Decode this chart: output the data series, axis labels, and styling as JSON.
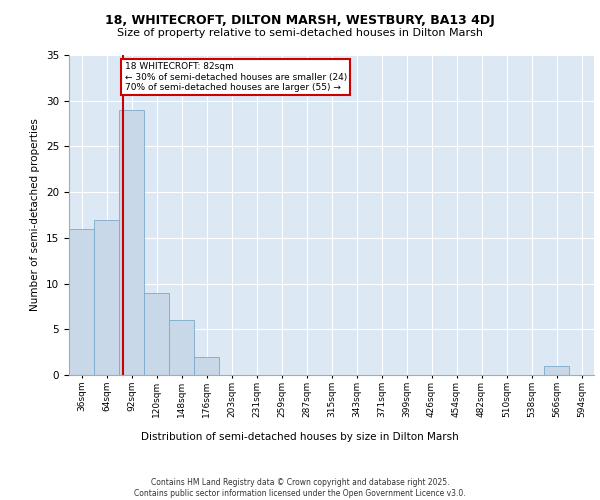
{
  "title_line1": "18, WHITECROFT, DILTON MARSH, WESTBURY, BA13 4DJ",
  "title_line2": "Size of property relative to semi-detached houses in Dilton Marsh",
  "xlabel": "Distribution of semi-detached houses by size in Dilton Marsh",
  "ylabel": "Number of semi-detached properties",
  "annotation_title": "18 WHITECROFT: 82sqm",
  "annotation_line2": "← 30% of semi-detached houses are smaller (24)",
  "annotation_line3": "70% of semi-detached houses are larger (55) →",
  "footer_line1": "Contains HM Land Registry data © Crown copyright and database right 2025.",
  "footer_line2": "Contains public sector information licensed under the Open Government Licence v3.0.",
  "bin_labels": [
    "36sqm",
    "64sqm",
    "92sqm",
    "120sqm",
    "148sqm",
    "176sqm",
    "203sqm",
    "231sqm",
    "259sqm",
    "287sqm",
    "315sqm",
    "343sqm",
    "371sqm",
    "399sqm",
    "426sqm",
    "454sqm",
    "482sqm",
    "510sqm",
    "538sqm",
    "566sqm",
    "594sqm"
  ],
  "bar_values": [
    16,
    17,
    29,
    9,
    6,
    2,
    0,
    0,
    0,
    0,
    0,
    0,
    0,
    0,
    0,
    0,
    0,
    0,
    0,
    1,
    0
  ],
  "bar_color": "#c8d8e8",
  "bar_edge_color": "#7aaac8",
  "ylim": [
    0,
    35
  ],
  "yticks": [
    0,
    5,
    10,
    15,
    20,
    25,
    30,
    35
  ],
  "marker_color": "#cc0000",
  "annotation_box_color": "#cc0000",
  "background_color": "#dce8f4",
  "grid_color": "#ffffff"
}
